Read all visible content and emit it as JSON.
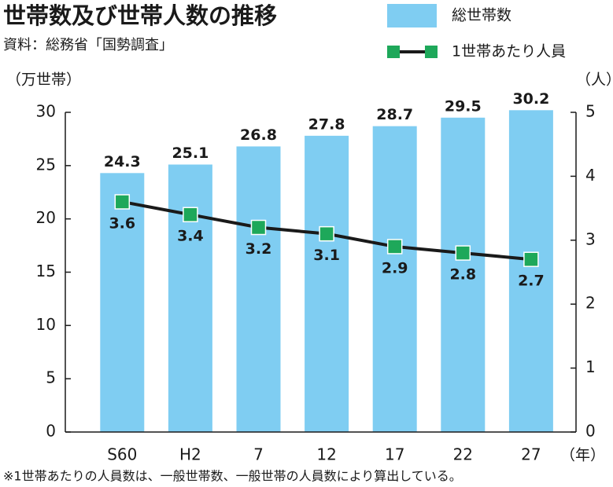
{
  "chart_data": {
    "type": "bar",
    "title": "世帯数及び世帯人数の推移",
    "subtitle": "資料：総務省「国勢調査」",
    "y_label": "（万世帯）",
    "y2_label": "（人）",
    "x_label": "（年）",
    "note": "※1世帯あたりの人員数は、一般世帯数、一般世帯の人員数により算出している。",
    "categories": [
      "S60",
      "H2",
      "7",
      "12",
      "17",
      "22",
      "27"
    ],
    "series": [
      {
        "name": "総世帯数",
        "color": "#7fcdf2",
        "type": "bar",
        "values": [
          24.3,
          25.1,
          26.8,
          27.8,
          28.7,
          29.5,
          30.2
        ]
      },
      {
        "name": "1世帯あたり人員",
        "color": "#1a1a1a",
        "marker_color": "#1ea85a",
        "type": "line",
        "axis": "y2",
        "values": [
          3.6,
          3.4,
          3.2,
          3.1,
          2.9,
          2.8,
          2.7
        ]
      }
    ],
    "ylim": [
      0,
      30
    ],
    "yticks": [
      0,
      5,
      10,
      15,
      20,
      25,
      30
    ],
    "y2lim": [
      0,
      5
    ],
    "y2ticks": [
      0,
      1,
      2,
      3,
      4,
      5
    ]
  }
}
